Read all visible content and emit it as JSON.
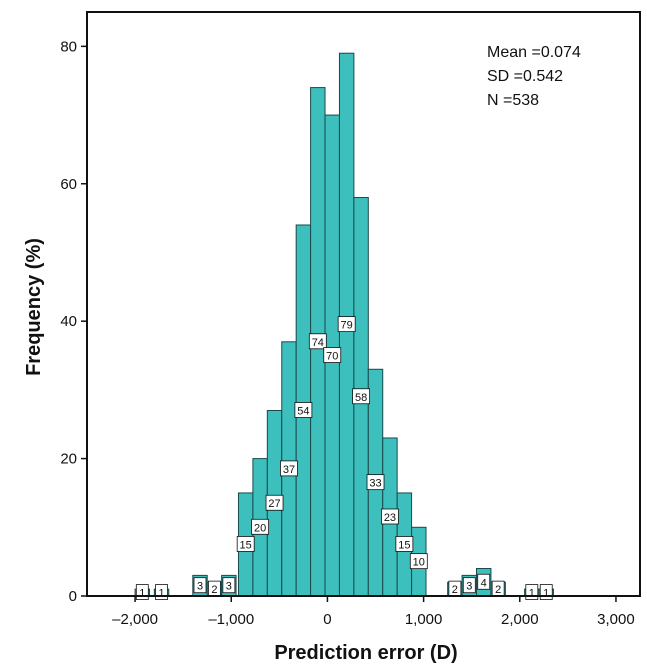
{
  "chart_data": {
    "type": "bar",
    "title": "",
    "xlabel": "Prediction error (D)",
    "ylabel": "Frequency (%)",
    "xlim": [
      -2.5,
      3.25
    ],
    "ylim": [
      0,
      85
    ],
    "x_ticks": [
      -2,
      -1,
      0,
      1,
      2,
      3
    ],
    "x_tick_labels": [
      "–2,000",
      "–1,000",
      "0",
      "1,000",
      "2,000",
      "3,000"
    ],
    "y_ticks": [
      0,
      20,
      40,
      60,
      80
    ],
    "y_tick_labels": [
      "0",
      "20",
      "40",
      "60",
      "80"
    ],
    "bin_width": 0.15,
    "bins": [
      {
        "x": -2.0,
        "value": 1,
        "label": "1"
      },
      {
        "x": -1.8,
        "value": 1,
        "label": "1"
      },
      {
        "x": -1.4,
        "value": 3,
        "label": "3"
      },
      {
        "x": -1.25,
        "value": 2,
        "label": "2"
      },
      {
        "x": -1.1,
        "value": 3,
        "label": "3"
      },
      {
        "x": -0.925,
        "value": 15,
        "label": "15"
      },
      {
        "x": -0.775,
        "value": 20,
        "label": "20"
      },
      {
        "x": -0.625,
        "value": 27,
        "label": "27"
      },
      {
        "x": -0.475,
        "value": 37,
        "label": "37"
      },
      {
        "x": -0.325,
        "value": 54,
        "label": "54"
      },
      {
        "x": -0.175,
        "value": 74,
        "label": "74"
      },
      {
        "x": -0.025,
        "value": 70,
        "label": "70"
      },
      {
        "x": 0.125,
        "value": 79,
        "label": "79"
      },
      {
        "x": 0.275,
        "value": 58,
        "label": "58"
      },
      {
        "x": 0.425,
        "value": 33,
        "label": "33"
      },
      {
        "x": 0.575,
        "value": 23,
        "label": "23"
      },
      {
        "x": 0.725,
        "value": 15,
        "label": "15"
      },
      {
        "x": 0.875,
        "value": 10,
        "label": "10"
      },
      {
        "x": 1.25,
        "value": 2,
        "label": "2"
      },
      {
        "x": 1.4,
        "value": 3,
        "label": "3"
      },
      {
        "x": 1.55,
        "value": 4,
        "label": "4"
      },
      {
        "x": 1.7,
        "value": 2,
        "label": "2"
      },
      {
        "x": 2.05,
        "value": 1,
        "label": "1"
      },
      {
        "x": 2.2,
        "value": 1,
        "label": "1"
      }
    ],
    "stats": {
      "mean": "Mean =0.074",
      "sd": "SD =0.542",
      "n": "N =538"
    },
    "grid": false,
    "bar_color": "#3dbfbd",
    "bar_edge_color": "#1a4a4a"
  }
}
